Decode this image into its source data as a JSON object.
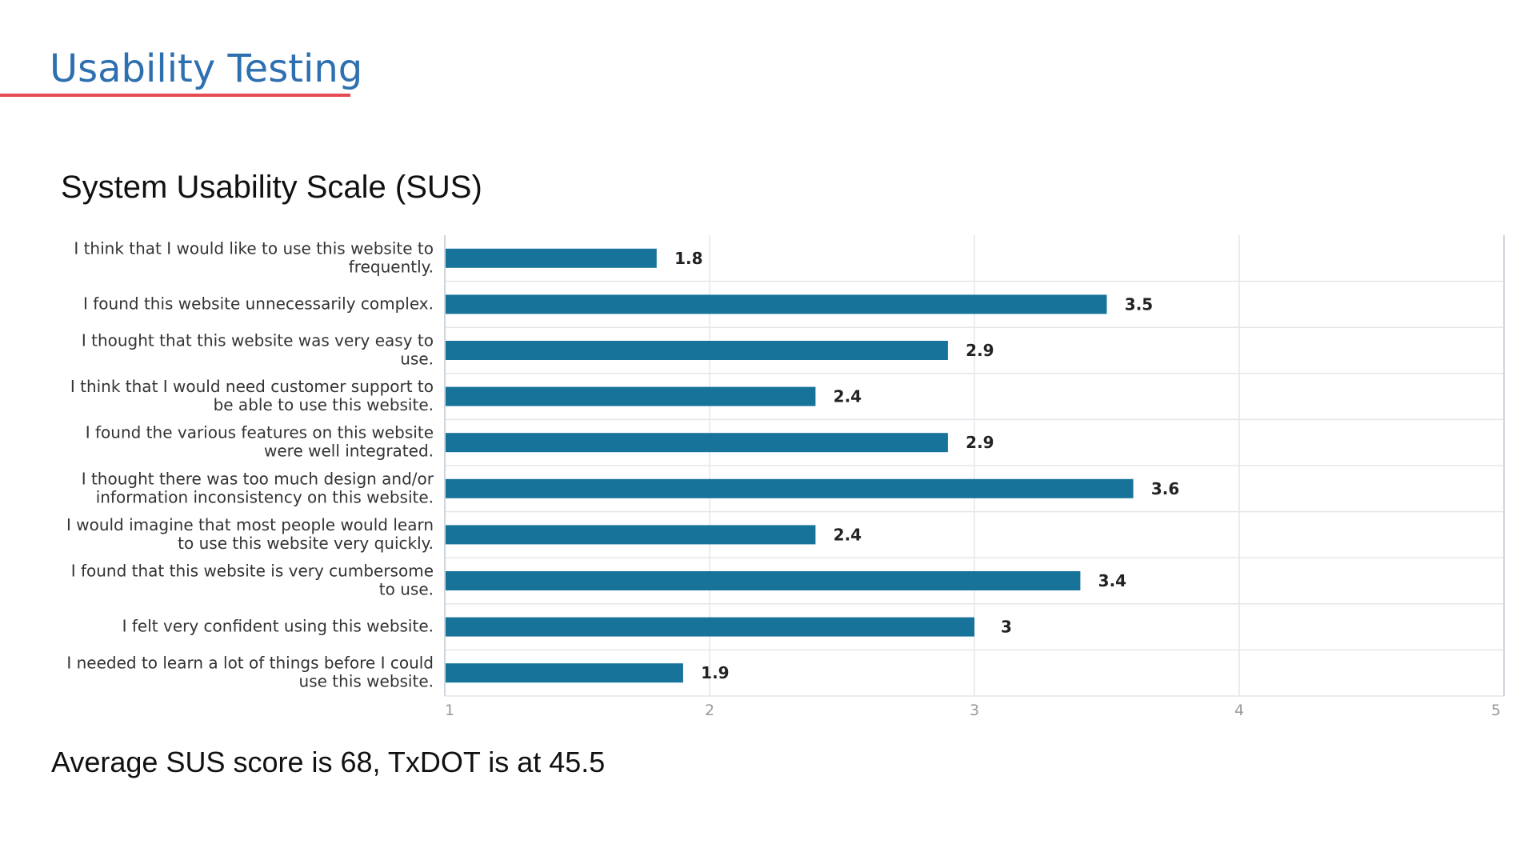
{
  "slide": {
    "title": "Usability Testing",
    "footer": "Average SUS score is 68, TxDOT is at 45.5"
  },
  "colors": {
    "title": "#2e6fb0",
    "underline": "#e64b53",
    "bar": "#17739a",
    "grid": "#e3e6ea"
  },
  "chart_data": {
    "type": "bar",
    "orientation": "horizontal",
    "title": "System Usability Scale (SUS)",
    "xlabel": "",
    "ylabel": "",
    "xlim": [
      1,
      5
    ],
    "xticks": [
      "1",
      "2",
      "3",
      "4",
      "5"
    ],
    "grid": true,
    "categories": [
      [
        "I think that I would like to use this website to",
        "frequently."
      ],
      [
        "I found this website unnecessarily complex."
      ],
      [
        "I thought that this website was very easy to",
        "use."
      ],
      [
        "I think that I would need customer support to",
        "be able to use this website."
      ],
      [
        "I found the various features on this website",
        "were well integrated."
      ],
      [
        "I thought there was too much design and/or",
        "information inconsistency on this website."
      ],
      [
        "I would imagine that most people would learn",
        "to use this website very quickly."
      ],
      [
        "I found that this website is very cumbersome",
        "to use."
      ],
      [
        "I felt very confident using this website."
      ],
      [
        "I needed to learn a lot of things before I could",
        "use this website."
      ]
    ],
    "values": [
      1.8,
      3.5,
      2.9,
      2.4,
      2.9,
      3.6,
      2.4,
      3.4,
      3,
      1.9
    ],
    "value_labels": [
      "1.8",
      "3.5",
      "2.9",
      "2.4",
      "2.9",
      "3.6",
      "2.4",
      "3.4",
      "3",
      "1.9"
    ]
  }
}
